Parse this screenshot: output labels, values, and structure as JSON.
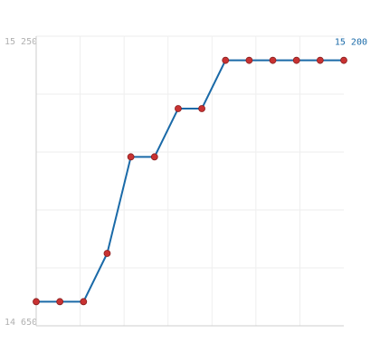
{
  "chart_data": {
    "type": "line",
    "categories": [
      null,
      null,
      null,
      null,
      null,
      null,
      null,
      null,
      null,
      null,
      null,
      null,
      null,
      null
    ],
    "series": [
      {
        "color": "#1a6aa8",
        "marker_color": "#c83232",
        "values": [
          14700,
          14700,
          14700,
          14800,
          15000,
          15000,
          15100,
          15100,
          15200,
          15200,
          15200,
          15200,
          15200,
          15200
        ],
        "value_labels": [
          null,
          null,
          null,
          null,
          null,
          null,
          null,
          null,
          null,
          null,
          null,
          null,
          null,
          "15 200"
        ]
      }
    ],
    "ylim": [
      14650,
      15250
    ],
    "yticks": [
      {
        "value": 14650,
        "label": "14 650"
      },
      {
        "value": 15250,
        "label": "15 250"
      }
    ],
    "ygrid": [
      14770,
      14890,
      15010,
      15130
    ],
    "grid": true
  }
}
